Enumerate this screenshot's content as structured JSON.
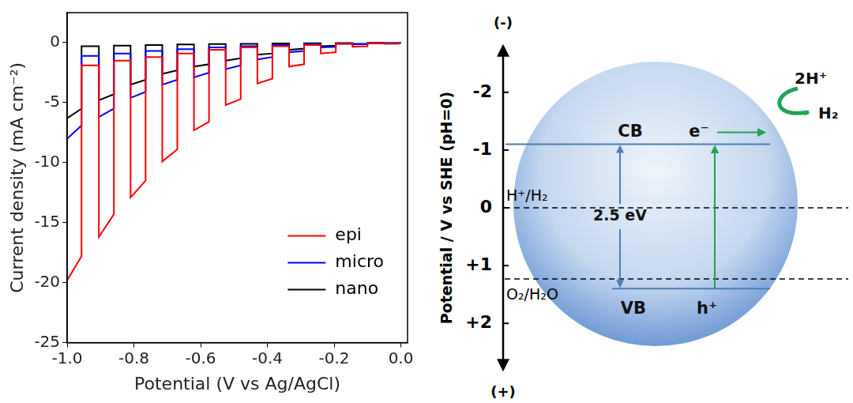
{
  "chart_data": {
    "type": "line",
    "x_label": "Potential (V vs Ag/AgCl)",
    "y_label": "Current density (mA cm⁻²)",
    "x": [
      -1.0,
      -0.957,
      -0.957,
      -0.905,
      -0.905,
      -0.86,
      -0.86,
      -0.81,
      -0.81,
      -0.765,
      -0.765,
      -0.715,
      -0.715,
      -0.67,
      -0.67,
      -0.62,
      -0.62,
      -0.575,
      -0.575,
      -0.525,
      -0.525,
      -0.48,
      -0.48,
      -0.43,
      -0.43,
      -0.385,
      -0.385,
      -0.335,
      -0.335,
      -0.29,
      -0.29,
      -0.24,
      -0.24,
      -0.195,
      -0.195,
      -0.145,
      -0.145,
      -0.1,
      -0.1,
      -0.05,
      -0.05,
      -0.005,
      -0.005,
      0.0
    ],
    "series": [
      {
        "name": "epi",
        "color": "#ff0000",
        "values": [
          -19.8,
          -17.8,
          -1.9,
          -1.9,
          -16.2,
          -14.3,
          -1.5,
          -1.5,
          -12.9,
          -11.5,
          -1.2,
          -1.2,
          -9.9,
          -8.9,
          -0.9,
          -0.9,
          -7.3,
          -6.6,
          -0.6,
          -0.6,
          -5.2,
          -4.7,
          -0.4,
          -0.4,
          -3.4,
          -3.0,
          -0.3,
          -0.3,
          -2.0,
          -1.8,
          -0.2,
          -0.2,
          -0.9,
          -0.8,
          -0.1,
          -0.1,
          -0.35,
          -0.3,
          -0.05,
          -0.05,
          -0.1,
          -0.08,
          -0.02,
          -0.02
        ]
      },
      {
        "name": "micro",
        "color": "#0000ff",
        "values": [
          -8.0,
          -6.9,
          -1.1,
          -1.1,
          -6.2,
          -5.5,
          -0.9,
          -0.9,
          -4.6,
          -4.1,
          -0.7,
          -0.7,
          -3.5,
          -3.1,
          -0.55,
          -0.55,
          -2.9,
          -2.5,
          -0.4,
          -0.4,
          -2.2,
          -1.9,
          -0.3,
          -0.3,
          -1.4,
          -1.2,
          -0.2,
          -0.2,
          -0.8,
          -0.7,
          -0.12,
          -0.12,
          -0.4,
          -0.35,
          -0.08,
          -0.08,
          -0.15,
          -0.12,
          -0.04,
          -0.04,
          -0.05,
          -0.04,
          -0.02,
          -0.02
        ]
      },
      {
        "name": "nano",
        "color": "#000000",
        "values": [
          -6.3,
          -5.5,
          -0.3,
          -0.3,
          -4.8,
          -4.3,
          -0.25,
          -0.25,
          -3.5,
          -3.1,
          -0.2,
          -0.2,
          -2.6,
          -2.3,
          -0.15,
          -0.15,
          -2.0,
          -1.8,
          -0.12,
          -0.12,
          -1.5,
          -1.3,
          -0.1,
          -0.1,
          -1.0,
          -0.9,
          -0.07,
          -0.07,
          -0.6,
          -0.5,
          -0.05,
          -0.05,
          -0.3,
          -0.25,
          -0.03,
          -0.03,
          -0.1,
          -0.08,
          -0.02,
          -0.02,
          -0.03,
          -0.02,
          -0.01,
          -0.01
        ]
      }
    ],
    "xlim": [
      -1.0,
      0.02
    ],
    "xticks": [
      {
        "value": -1.0,
        "label": "-1.0"
      },
      {
        "value": -0.8,
        "label": "-0.8"
      },
      {
        "value": -0.6,
        "label": "-0.6"
      },
      {
        "value": -0.4,
        "label": "-0.4"
      },
      {
        "value": -0.2,
        "label": "-0.2"
      },
      {
        "value": 0.0,
        "label": "0.0"
      }
    ],
    "ylim": [
      -25,
      2.5
    ],
    "yticks": [
      -25,
      -20,
      -15,
      -10,
      -5,
      0
    ],
    "grid": false,
    "legend": "lower right"
  },
  "diagram": {
    "axis_title": "Potential / V vs SHE (pH=0)",
    "axis_top": "(-)",
    "axis_bottom": "(+)",
    "ylim": [
      -2.9,
      2.9
    ],
    "yticks": [
      -2,
      -1,
      0,
      {
        "value": 1,
        "label": "+1"
      },
      {
        "value": 2,
        "label": "+2"
      }
    ],
    "levels": [
      {
        "label": "H⁺/H₂",
        "value": 0
      },
      {
        "label": "O₂/H₂O",
        "value": 1.23
      }
    ],
    "bands": {
      "cb": {
        "label": "CB",
        "value": -1.1
      },
      "vb": {
        "label": "VB",
        "value": 1.4
      }
    },
    "band_gap": "2.5 eV",
    "electron": "e⁻",
    "hole": "h⁺",
    "reaction": {
      "reactant": "2H⁺",
      "product": "H₂"
    }
  }
}
